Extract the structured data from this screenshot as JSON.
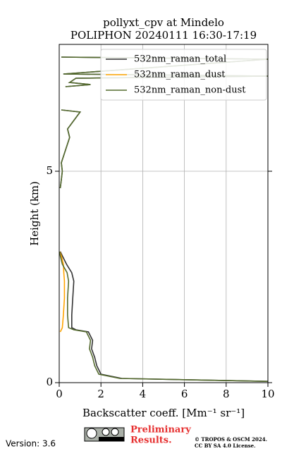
{
  "chart_data": {
    "type": "line",
    "title": "pollyxt_cpv at Mindelo",
    "subtitle": "POLIPHON 20240111 16:30-17:19",
    "x_label": "Backscatter coeff. [Mm⁻¹ sr⁻¹]",
    "y_label": "Height (km)",
    "xlim": [
      0,
      10
    ],
    "xticks": [
      0,
      2,
      4,
      6,
      8,
      10
    ],
    "ylim": [
      0,
      8
    ],
    "yticks": [
      0,
      5
    ],
    "grid": true,
    "legend": "upper right",
    "y": [
      0.03,
      0.1,
      0.2,
      0.4,
      0.6,
      0.8,
      1.0,
      1.2,
      1.25,
      1.3,
      1.6,
      2.0,
      2.4,
      2.6,
      2.8,
      3.0,
      3.1,
      4.0,
      4.6,
      4.8,
      5.0,
      5.2,
      5.5,
      5.8,
      6.0,
      6.2,
      6.4,
      6.45,
      6.8,
      7.0,
      7.05,
      7.1,
      7.2,
      7.25,
      7.3,
      7.65,
      7.7
    ],
    "series": [
      {
        "name": "532nm_raman_total",
        "color": "#333333",
        "values": [
          10,
          3,
          2,
          1.8,
          1.7,
          1.55,
          1.6,
          1.4,
          0.8,
          0.6,
          0.6,
          0.65,
          0.7,
          0.6,
          0.35,
          0.15,
          0.05,
          null,
          0.05,
          0.1,
          0.15,
          0.1,
          0.3,
          0.5,
          0.4,
          0.7,
          1.0,
          0.1,
          null,
          0.3,
          1.5,
          0.5,
          0.8,
          10,
          0.2,
          10,
          0.1
        ]
      },
      {
        "name": "532nm_raman_dust",
        "color": "#ffa500",
        "values": [
          null,
          null,
          null,
          null,
          null,
          null,
          null,
          0.05,
          0.1,
          0.15,
          0.2,
          0.25,
          0.25,
          0.22,
          0.2,
          0.1,
          0.03,
          null,
          null,
          null,
          null,
          null,
          null,
          null,
          null,
          null,
          null,
          null,
          null,
          null,
          null,
          null,
          null,
          null,
          null,
          null,
          null
        ]
      },
      {
        "name": "532nm_raman_non-dust",
        "color": "#556b2f",
        "values": [
          10,
          2.9,
          1.9,
          1.7,
          1.6,
          1.45,
          1.5,
          1.3,
          0.7,
          0.45,
          0.4,
          0.4,
          0.45,
          0.38,
          0.15,
          0.05,
          0.02,
          null,
          0.05,
          0.1,
          0.15,
          0.1,
          0.3,
          0.5,
          0.4,
          0.7,
          1.0,
          0.1,
          null,
          0.3,
          1.5,
          0.5,
          0.8,
          10,
          0.2,
          10,
          0.1
        ]
      }
    ],
    "footer": {
      "version": "Version: 3.6",
      "notice": [
        "Preliminary",
        "Results."
      ],
      "copyright": [
        "© TROPOS & OSCM 2024.",
        "CC BY SA 4.0 License."
      ]
    }
  }
}
